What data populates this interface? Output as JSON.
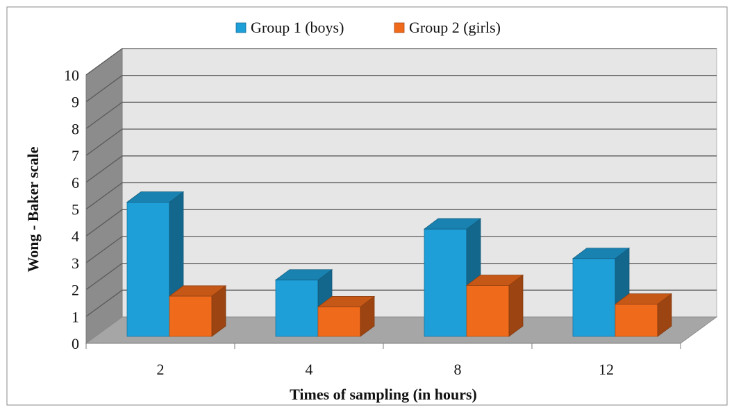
{
  "chart_data": {
    "type": "bar",
    "title": "",
    "xlabel": "Times of sampling (in hours)",
    "ylabel": "Wong - Baker scale",
    "categories": [
      "2",
      "4",
      "8",
      "12"
    ],
    "ylim": [
      0,
      10
    ],
    "yticks": [
      "0",
      "1",
      "2",
      "3",
      "4",
      "5",
      "6",
      "7",
      "8",
      "9",
      "10"
    ],
    "grid": true,
    "legend_position": "top",
    "series": [
      {
        "name": "Group 1 (boys)",
        "values": [
          5.0,
          2.1,
          4.0,
          2.9
        ],
        "color": "#1f9fd8"
      },
      {
        "name": "Group 2 (girls)",
        "values": [
          1.5,
          1.1,
          1.9,
          1.2
        ],
        "color": "#f06a1c"
      }
    ]
  }
}
